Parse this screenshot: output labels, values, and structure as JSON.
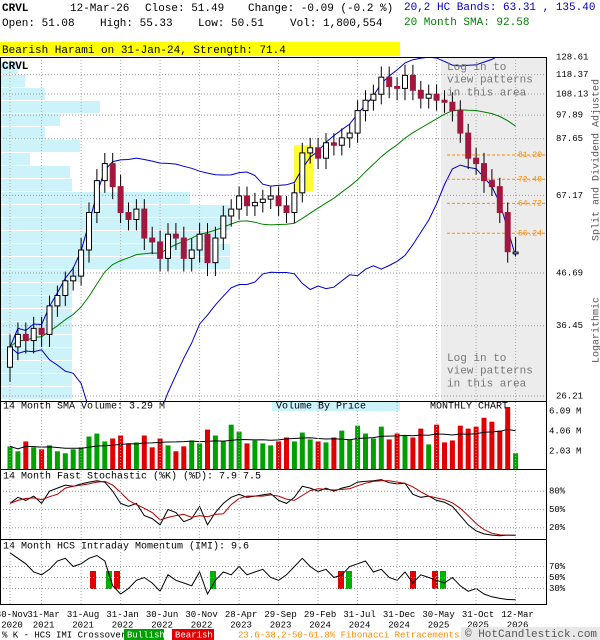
{
  "header": {
    "symbol": "CRVL",
    "date": "12-Mar-26",
    "close": "Close: 51.49",
    "change": "Change: -0.09 (-0.2 %)",
    "open": "Open: 51.08",
    "high": "High: 55.33",
    "low": "Low: 50.51",
    "volume": "Vol: 1,800,554",
    "bands": "20,2 HC Bands: 63.31 , 135.40",
    "sma": "20 Month SMA: 92.58"
  },
  "chart_data": [
    {
      "type": "candlestick",
      "annotation": "Bearish Harami on 31-Jan-24, Strength: 71.4",
      "categories": [
        "30-Nov 2020",
        null,
        null,
        null,
        "31-Mar 2021",
        null,
        null,
        null,
        null,
        "31-Aug 2021",
        null,
        null,
        null,
        null,
        "31-Jan 2022",
        null,
        null,
        null,
        null,
        "30-Jun 2022",
        null,
        null,
        null,
        null,
        "30-Nov 2022",
        null,
        null,
        null,
        null,
        "28-Apr 2023",
        null,
        null,
        null,
        null,
        "29-Sep 2023",
        null,
        null,
        null,
        null,
        "29-Feb 2024",
        null,
        null,
        null,
        null,
        "31-Jul 2024",
        null,
        null,
        null,
        null,
        "31-Dec 2024",
        null,
        null,
        null,
        null,
        "30-May 2025",
        null,
        null,
        null,
        null,
        "31-Oct 2025",
        null,
        null,
        null,
        null,
        "12-Mar 2026"
      ],
      "open": [
        30,
        33,
        35,
        34,
        36,
        35,
        40,
        42,
        45,
        46,
        52,
        62,
        72,
        78,
        70,
        62,
        60,
        63,
        55,
        54,
        50,
        56,
        55,
        50,
        52,
        56,
        49,
        55,
        61,
        63,
        67,
        64,
        65,
        66,
        67,
        64,
        62,
        68,
        82,
        84,
        80,
        86,
        85,
        88,
        90,
        100,
        105,
        108,
        117,
        112,
        111,
        118,
        110,
        106,
        108,
        105,
        104,
        100,
        90,
        80,
        78,
        72,
        70,
        62,
        51.08
      ],
      "high": [
        35,
        37,
        37,
        38,
        38,
        42,
        44,
        47,
        48,
        55,
        65,
        76,
        82,
        82,
        74,
        65,
        66,
        66,
        58,
        57,
        59,
        59,
        58,
        55,
        59,
        59,
        58,
        64,
        66,
        70,
        70,
        68,
        69,
        70,
        70,
        67,
        71,
        86,
        88,
        88,
        90,
        90,
        92,
        94,
        105,
        110,
        113,
        123,
        123,
        117,
        124,
        124,
        115,
        113,
        113,
        110,
        109,
        105,
        94,
        84,
        82,
        76,
        73,
        65,
        55.33
      ],
      "low": [
        28,
        31,
        32,
        32,
        33,
        33,
        38,
        40,
        43,
        44,
        49,
        59,
        68,
        66,
        59,
        57,
        57,
        52,
        51,
        47,
        47,
        52,
        47,
        47,
        49,
        46,
        46,
        52,
        58,
        60,
        61,
        61,
        62,
        63,
        61,
        59,
        59,
        65,
        78,
        76,
        76,
        81,
        81,
        84,
        86,
        95,
        100,
        103,
        106,
        105,
        105,
        105,
        101,
        101,
        100,
        99,
        95,
        86,
        76,
        74,
        68,
        67,
        59,
        49,
        50.51
      ],
      "close": [
        33,
        35,
        34,
        36,
        35,
        40,
        42,
        45,
        46,
        52,
        62,
        72,
        78,
        70,
        62,
        60,
        63,
        55,
        54,
        50,
        56,
        55,
        50,
        52,
        56,
        49,
        55,
        61,
        63,
        67,
        64,
        65,
        66,
        67,
        64,
        62,
        68,
        82,
        84,
        80,
        86,
        85,
        88,
        90,
        100,
        105,
        108,
        117,
        112,
        111,
        118,
        110,
        106,
        108,
        105,
        104,
        100,
        90,
        80,
        78,
        72,
        70,
        62,
        51.58,
        51.49
      ],
      "up_color": "#ffffff",
      "down_color": "#a3173f",
      "band_color": "#0000c8",
      "sma_color": "#008000",
      "log_scale": true,
      "grid": true,
      "ylim": [
        26.21,
        128.61
      ],
      "yticks": [
        26.21,
        36.45,
        46.69,
        67.17,
        87.65,
        97.89,
        108.13,
        118.37,
        128.61
      ],
      "fib_color": "#ff8c00",
      "fib_levels": [
        {
          "value": 81.2,
          "label": "81.20"
        },
        {
          "value": 72.49,
          "label": "72.49"
        },
        {
          "value": 64.72,
          "label": "64.72"
        },
        {
          "value": 56.24,
          "label": "56.24"
        }
      ],
      "overlay_notes": [
        "Log in to view patterns in this area",
        "Log in to view patterns in this area"
      ],
      "side_labels": [
        "Split and Dividend Adjusted",
        "Logarithmic"
      ]
    },
    {
      "type": "bar",
      "title": "14 Month SMA Volume: 3.29 M",
      "notes": [
        "Volume By Price",
        "MONTHLY CHART"
      ],
      "values": [
        2.5,
        2.0,
        3.0,
        2.4,
        2.2,
        2.6,
        2.0,
        1.8,
        2.2,
        2.4,
        3.5,
        3.8,
        3.0,
        3.3,
        3.6,
        2.8,
        2.9,
        3.6,
        2.4,
        3.3,
        2.6,
        2.0,
        2.5,
        3.1,
        2.8,
        4.2,
        3.6,
        3.0,
        4.7,
        4.0,
        2.8,
        3.1,
        2.8,
        2.6,
        3.0,
        3.4,
        3.0,
        3.9,
        3.2,
        3.0,
        2.9,
        3.4,
        4.1,
        3.2,
        4.6,
        3.8,
        3.3,
        4.5,
        3.2,
        3.8,
        3.6,
        3.4,
        4.3,
        2.7,
        4.7,
        2.9,
        3.1,
        4.6,
        4.3,
        4.5,
        5.4,
        5.0,
        4.1,
        6.5,
        1.8
      ],
      "up_color": "#00a000",
      "down_color": "#e00000",
      "ylim": [
        0,
        7
      ],
      "yticks": [
        {
          "value": 2.03,
          "label": "2.03 M"
        },
        {
          "value": 4.06,
          "label": "4.06 M"
        },
        {
          "value": 6.09,
          "label": "6.09 M"
        }
      ]
    },
    {
      "type": "line",
      "title": "14 Month Fast Stochastic (%K) (%D): 7.9    7.5",
      "series": [
        {
          "color": "#000000",
          "values": [
            60,
            70,
            65,
            72,
            60,
            80,
            85,
            90,
            88,
            92,
            95,
            97,
            95,
            80,
            60,
            55,
            60,
            40,
            35,
            25,
            50,
            45,
            30,
            35,
            55,
            25,
            45,
            60,
            70,
            75,
            70,
            72,
            74,
            76,
            65,
            60,
            70,
            88,
            85,
            80,
            85,
            80,
            85,
            88,
            95,
            96,
            97,
            99,
            94,
            92,
            93,
            75,
            70,
            72,
            65,
            62,
            55,
            40,
            25,
            15,
            10,
            8,
            7,
            8,
            7.9
          ]
        },
        {
          "color": "#b00000",
          "values": [
            60,
            65,
            68,
            69,
            66,
            71,
            75,
            85,
            88,
            90,
            92,
            95,
            96,
            90,
            78,
            65,
            58,
            52,
            45,
            33,
            37,
            40,
            42,
            37,
            40,
            38,
            42,
            43,
            58,
            68,
            72,
            72,
            72,
            74,
            72,
            67,
            65,
            73,
            81,
            84,
            83,
            82,
            83,
            84,
            89,
            93,
            96,
            97,
            97,
            95,
            93,
            87,
            79,
            72,
            69,
            66,
            61,
            52,
            40,
            27,
            17,
            11,
            8.3,
            7.7,
            7.5
          ]
        }
      ],
      "ylim": [
        0,
        100
      ],
      "yticks": [
        {
          "value": 20,
          "label": "20%"
        },
        {
          "value": 50,
          "label": "50%"
        },
        {
          "value": 80,
          "label": "80%"
        }
      ],
      "grid": true
    },
    {
      "type": "line",
      "title": "14 Month HCS Intraday Momentum (IMI): 9.6",
      "series": [
        {
          "color": "#000000",
          "values": [
            95,
            85,
            75,
            60,
            55,
            65,
            80,
            85,
            70,
            75,
            85,
            90,
            80,
            35,
            20,
            30,
            45,
            50,
            40,
            25,
            55,
            45,
            40,
            35,
            60,
            20,
            45,
            60,
            55,
            70,
            55,
            60,
            65,
            50,
            45,
            55,
            70,
            85,
            70,
            60,
            65,
            50,
            55,
            70,
            75,
            80,
            60,
            65,
            50,
            45,
            60,
            40,
            55,
            50,
            45,
            40,
            50,
            35,
            25,
            30,
            20,
            15,
            12,
            10,
            9.6
          ]
        }
      ],
      "ylim": [
        0,
        100
      ],
      "yticks": [
        {
          "value": 30,
          "label": "30%"
        },
        {
          "value": 50,
          "label": "50%"
        },
        {
          "value": 70,
          "label": "70%"
        }
      ],
      "grid": true
    }
  ],
  "footer": {
    "crossover": "% K - HCS IMI Crossover:",
    "bullish": "Bullish",
    "bearish": "Bearish",
    "fibonacci": "23.6-38.2-50-61.8% Fibonacci Retracements",
    "credit": "© HotCandlestick.com"
  }
}
